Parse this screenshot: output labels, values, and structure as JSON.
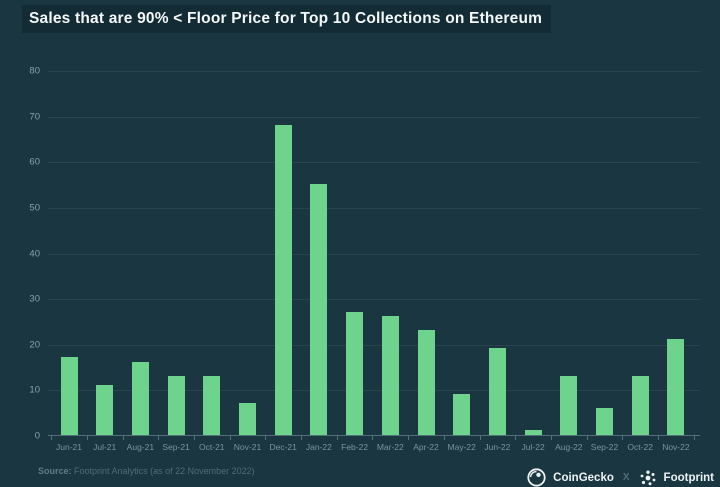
{
  "title": "Sales that are 90% < Floor Price for Top 10 Collections on Ethereum",
  "chart_data": {
    "type": "bar",
    "title": "Sales that are 90% < Floor Price for Top 10 Collections on Ethereum",
    "categories": [
      "Jun-21",
      "Jul-21",
      "Aug-21",
      "Sep-21",
      "Oct-21",
      "Nov-21",
      "Dec-21",
      "Jan-22",
      "Feb-22",
      "Mar-22",
      "Apr-22",
      "May-22",
      "Jun-22",
      "Jul-22",
      "Aug-22",
      "Sep-22",
      "Oct-22",
      "Nov-22"
    ],
    "values": [
      17,
      11,
      16,
      13,
      13,
      7,
      68,
      55,
      27,
      26,
      23,
      9,
      19,
      1,
      13,
      6,
      13,
      21
    ],
    "xlabel": "",
    "ylabel": "",
    "ylim": [
      0,
      80
    ],
    "yticks": [
      0,
      10,
      20,
      30,
      40,
      50,
      60,
      70,
      80
    ],
    "grid": true,
    "legend": false,
    "bar_color": "#6ed38c",
    "background": "#1a3640"
  },
  "footer": {
    "source_label": "Source:",
    "source_text": "Footprint Analytics (as of 22 November 2022)",
    "coingecko_label": "CoinGecko",
    "separator": "X",
    "footprint_label": "Footprint"
  },
  "icons": {
    "coingecko": "coingecko-gecko-circle-icon",
    "footprint": "footprint-dots-star-icon"
  }
}
